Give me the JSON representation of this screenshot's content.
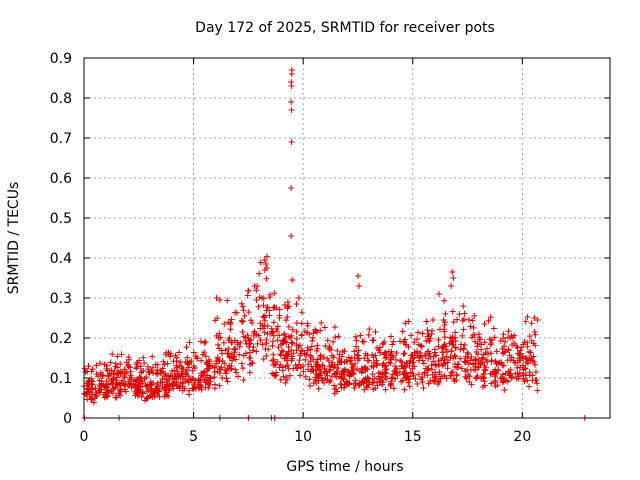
{
  "chart_data": {
    "type": "scatter",
    "title": "Day 172 of 2025, SRMTID for receiver pots",
    "xlabel": "GPS time / hours",
    "ylabel": "SRMTID / TECUs",
    "xlim": [
      0,
      24
    ],
    "ylim": [
      0,
      0.9
    ],
    "xticks": [
      0,
      5,
      10,
      15,
      20
    ],
    "xtick_labels": [
      "0",
      "5",
      "10",
      "15",
      "20"
    ],
    "yticks": [
      0,
      0.1,
      0.2,
      0.3,
      0.4,
      0.5,
      0.6,
      0.7,
      0.8,
      0.9
    ],
    "ytick_labels": [
      "0",
      "0.1",
      "0.2",
      "0.3",
      "0.4",
      "0.5",
      "0.6",
      "0.7",
      "0.8",
      "0.9"
    ],
    "grid": true,
    "marker": "+",
    "color": "#e00000",
    "trend": [
      [
        0.0,
        0.08
      ],
      [
        0.5,
        0.08
      ],
      [
        1.0,
        0.09
      ],
      [
        1.5,
        0.1
      ],
      [
        2.0,
        0.1
      ],
      [
        2.5,
        0.09
      ],
      [
        3.0,
        0.08
      ],
      [
        3.5,
        0.1
      ],
      [
        4.0,
        0.11
      ],
      [
        4.5,
        0.11
      ],
      [
        5.0,
        0.12
      ],
      [
        5.5,
        0.13
      ],
      [
        6.0,
        0.15
      ],
      [
        6.5,
        0.17
      ],
      [
        7.0,
        0.18
      ],
      [
        7.5,
        0.19
      ],
      [
        8.0,
        0.24
      ],
      [
        8.3,
        0.28
      ],
      [
        8.5,
        0.22
      ],
      [
        9.0,
        0.16
      ],
      [
        9.5,
        0.18
      ],
      [
        10.0,
        0.17
      ],
      [
        10.5,
        0.15
      ],
      [
        11.0,
        0.14
      ],
      [
        11.5,
        0.13
      ],
      [
        12.0,
        0.12
      ],
      [
        12.5,
        0.13
      ],
      [
        13.0,
        0.12
      ],
      [
        13.5,
        0.13
      ],
      [
        14.0,
        0.13
      ],
      [
        14.5,
        0.14
      ],
      [
        15.0,
        0.14
      ],
      [
        15.5,
        0.15
      ],
      [
        16.0,
        0.16
      ],
      [
        16.5,
        0.18
      ],
      [
        17.0,
        0.17
      ],
      [
        17.5,
        0.17
      ],
      [
        18.0,
        0.16
      ],
      [
        18.5,
        0.15
      ],
      [
        19.0,
        0.14
      ],
      [
        19.5,
        0.13
      ],
      [
        20.0,
        0.15
      ],
      [
        20.5,
        0.16
      ],
      [
        20.7,
        0.12
      ]
    ],
    "highlights": [
      {
        "x": 9.48,
        "y": 0.87
      },
      {
        "x": 9.48,
        "y": 0.86
      },
      {
        "x": 9.45,
        "y": 0.84
      },
      {
        "x": 9.47,
        "y": 0.83
      },
      {
        "x": 9.45,
        "y": 0.79
      },
      {
        "x": 9.47,
        "y": 0.77
      },
      {
        "x": 9.47,
        "y": 0.69
      },
      {
        "x": 9.45,
        "y": 0.575
      },
      {
        "x": 9.45,
        "y": 0.455
      },
      {
        "x": 9.5,
        "y": 0.345
      },
      {
        "x": 9.8,
        "y": 0.3
      },
      {
        "x": 8.25,
        "y": 0.395
      },
      {
        "x": 8.3,
        "y": 0.385
      },
      {
        "x": 8.25,
        "y": 0.37
      },
      {
        "x": 8.35,
        "y": 0.375
      },
      {
        "x": 12.5,
        "y": 0.355
      },
      {
        "x": 12.55,
        "y": 0.33
      },
      {
        "x": 16.8,
        "y": 0.365
      },
      {
        "x": 16.85,
        "y": 0.35
      },
      {
        "x": 16.75,
        "y": 0.33
      },
      {
        "x": 16.2,
        "y": 0.31
      },
      {
        "x": 6.05,
        "y": 0.3
      },
      {
        "x": 6.2,
        "y": 0.295
      },
      {
        "x": 20.7,
        "y": 0.245
      },
      {
        "x": 20.55,
        "y": 0.25
      }
    ],
    "zero_points": [
      0.02,
      1.6,
      6.2,
      7.5,
      8.55,
      8.7,
      22.85
    ]
  }
}
